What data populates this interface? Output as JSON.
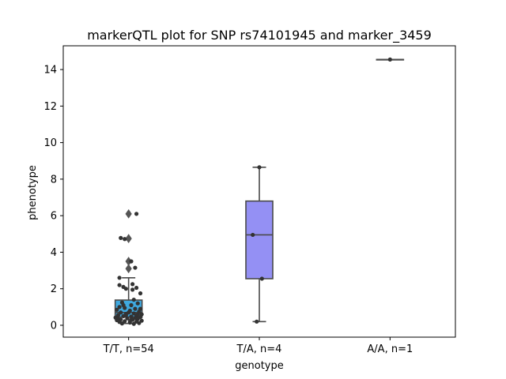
{
  "chart_data": {
    "type": "box",
    "title": "markerQTL plot for SNP rs74101945 and marker_3459",
    "xlabel": "genotype",
    "ylabel": "phenotype",
    "categories": [
      "T/T, n=54",
      "T/A, n=4",
      "A/A, n=1"
    ],
    "ylim": [
      -0.65,
      15.3
    ],
    "yticks": [
      0,
      2,
      4,
      6,
      8,
      10,
      12,
      14
    ],
    "grid": false,
    "legend": "none",
    "colors": {
      "box_fill": [
        "#3fa9e0",
        "#9490f4",
        "#9490f4"
      ],
      "box_edge": "#4a4a4a",
      "points": "#333333"
    },
    "boxes": [
      {
        "category": "T/T, n=54",
        "min": 0.1,
        "q1": 0.45,
        "median": 0.7,
        "q3": 1.38,
        "max": 2.6,
        "outliers": [
          3.1,
          3.5,
          4.75,
          6.1
        ]
      },
      {
        "category": "T/A, n=4",
        "min": 0.2,
        "q1": 2.55,
        "median": 4.95,
        "q3": 6.8,
        "max": 8.65,
        "outliers": []
      },
      {
        "category": "A/A, n=1",
        "min": 14.55,
        "q1": 14.55,
        "median": 14.55,
        "q3": 14.55,
        "max": 14.55,
        "outliers": []
      }
    ],
    "points": [
      [
        0.06,
        6.1
      ],
      [
        -0.03,
        4.72
      ],
      [
        -0.06,
        4.78
      ],
      [
        0.05,
        3.15
      ],
      [
        0.02,
        3.5
      ],
      [
        -0.07,
        2.6
      ],
      [
        0.03,
        2.25
      ],
      [
        -0.04,
        2.1
      ],
      [
        -0.07,
        2.2
      ],
      [
        0.06,
        2.05
      ],
      [
        0.03,
        1.95
      ],
      [
        -0.02,
        2.0
      ],
      [
        0.09,
        1.75
      ],
      [
        0.04,
        1.4
      ],
      [
        -0.05,
        1.25
      ],
      [
        -0.07,
        1.0
      ],
      [
        0.02,
        1.1
      ],
      [
        0.07,
        1.2
      ],
      [
        -0.03,
        0.95
      ],
      [
        0.05,
        0.9
      ],
      [
        -0.09,
        0.85
      ],
      [
        0.01,
        0.8
      ],
      [
        0.08,
        0.75
      ],
      [
        -0.06,
        0.7
      ],
      [
        0.04,
        0.65
      ],
      [
        -0.02,
        0.62
      ],
      [
        0.1,
        0.6
      ],
      [
        -0.08,
        0.55
      ],
      [
        0.06,
        0.52
      ],
      [
        -0.04,
        0.5
      ],
      [
        0.02,
        0.48
      ],
      [
        0.09,
        0.45
      ],
      [
        -0.1,
        0.42
      ],
      [
        0.05,
        0.4
      ],
      [
        -0.01,
        0.38
      ],
      [
        0.07,
        0.35
      ],
      [
        -0.06,
        0.32
      ],
      [
        0.03,
        0.3
      ],
      [
        -0.09,
        0.28
      ],
      [
        0.1,
        0.25
      ],
      [
        -0.03,
        0.22
      ],
      [
        0.06,
        0.2
      ],
      [
        -0.07,
        0.18
      ],
      [
        0.01,
        0.15
      ],
      [
        0.08,
        0.12
      ],
      [
        -0.05,
        0.1
      ],
      [
        0.04,
        0.08
      ],
      [
        -0.02,
        0.55
      ],
      [
        0.07,
        0.6
      ],
      [
        -0.08,
        0.35
      ],
      [
        0.0,
        0.7
      ],
      [
        0.09,
        0.9
      ],
      [
        -0.04,
        1.1
      ],
      [
        0.02,
        0.3
      ],
      [
        1.0,
        8.65
      ],
      [
        0.95,
        4.95
      ],
      [
        0.98,
        0.2
      ],
      [
        1.02,
        2.55
      ],
      [
        2.0,
        14.55
      ]
    ]
  }
}
